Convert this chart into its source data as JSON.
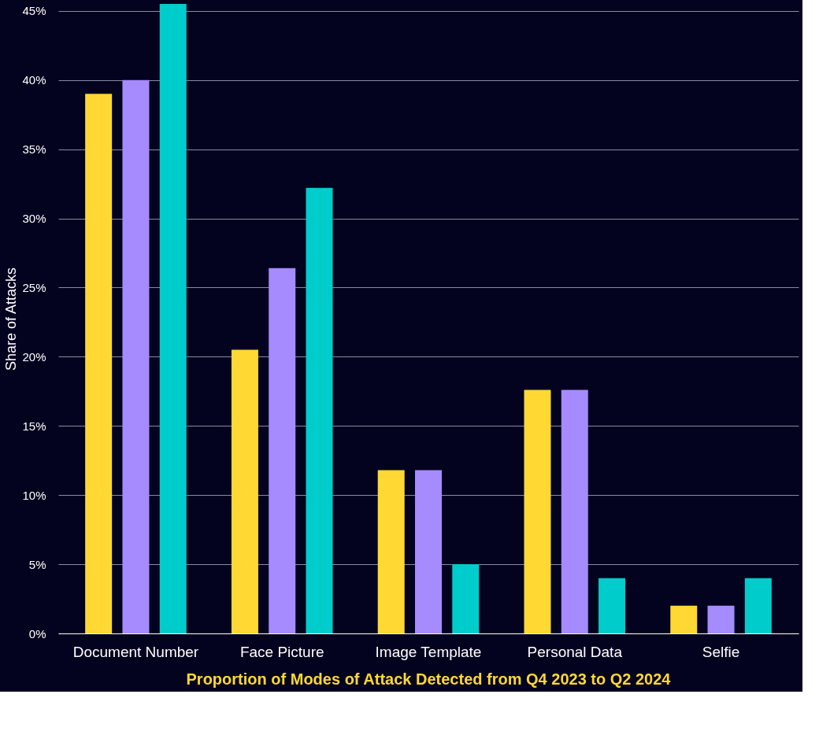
{
  "chart_data": {
    "type": "bar",
    "title": "Proportion of Modes of Attack Detected from Q4 2023 to Q2 2024",
    "ylabel": "Share of Attacks",
    "categories": [
      "Document Number",
      "Face Picture",
      "Image Template",
      "Personal Data",
      "Selfie"
    ],
    "series": [
      {
        "color": "#ffd833",
        "values": [
          39.0,
          20.5,
          11.8,
          17.6,
          2.0
        ]
      },
      {
        "color": "#a58bff",
        "values": [
          40.0,
          26.4,
          11.8,
          17.6,
          2.0
        ]
      },
      {
        "color": "#00cccc",
        "values": [
          45.5,
          32.2,
          5.0,
          4.0,
          4.0
        ]
      }
    ],
    "ylim": [
      0,
      45.5
    ],
    "yticks": [
      {
        "value": 0,
        "label": "0%"
      },
      {
        "value": 5,
        "label": "5%"
      },
      {
        "value": 10,
        "label": "10%"
      },
      {
        "value": 15,
        "label": "15%"
      },
      {
        "value": 20,
        "label": "20%"
      },
      {
        "value": 25,
        "label": "25%"
      },
      {
        "value": 30,
        "label": "30%"
      },
      {
        "value": 35,
        "label": "35%"
      },
      {
        "value": 40,
        "label": "40%"
      },
      {
        "value": 45,
        "label": "45%"
      }
    ],
    "grid": "y",
    "legend": false
  }
}
